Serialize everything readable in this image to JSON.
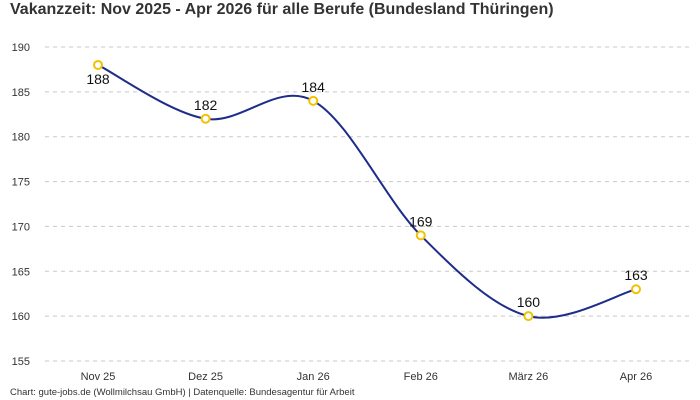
{
  "page": {
    "title": "Vakanzzeit: Nov 2025 - Apr 2026 für alle Berufe (Bundesland Thüringen)",
    "footer": "Chart: gute-jobs.de (Wollmilchsau GmbH) | Datenquelle: Bundesagentur für Arbeit"
  },
  "chart_data": {
    "type": "line",
    "title": "Vakanzzeit: Nov 2025 - Apr 2026 für alle Berufe (Bundesland Thüringen)",
    "xlabel": "",
    "ylabel": "",
    "categories": [
      "Nov 25",
      "Dez 25",
      "Jan 26",
      "Feb 26",
      "März 26",
      "Apr 26"
    ],
    "series": [
      {
        "values": [
          188,
          182,
          184,
          169,
          160,
          163
        ]
      }
    ],
    "ylim": [
      155,
      190
    ],
    "yticks": [
      155,
      160,
      165,
      170,
      175,
      180,
      185,
      190
    ],
    "grid": "horizontal dashed",
    "legend": "none",
    "line_color": "#1f2d8a",
    "marker_color": "#f2c200",
    "data_labels": true,
    "curve": "smooth"
  }
}
